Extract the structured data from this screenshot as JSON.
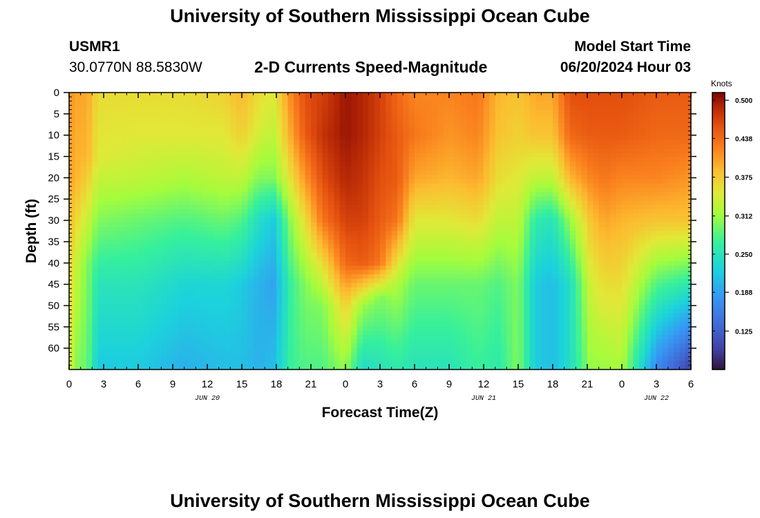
{
  "page": {
    "title": "University of Southern Mississippi Ocean Cube",
    "station": "USMR1",
    "coordinates": "30.0770N  88.5830W",
    "subtitle": "2-D Currents Speed-Magnitude",
    "model_start_label": "Model Start Time",
    "model_start_value": "06/20/2024 Hour 03",
    "footer_title": "University of Southern Mississippi Ocean Cube"
  },
  "chart_data": {
    "type": "heatmap",
    "title": "2-D Currents Speed-Magnitude",
    "xlabel": "Forecast Time(Z)",
    "ylabel": "Depth (ft)",
    "x_unit": "hours since Jun 20 00Z",
    "xlim": [
      0,
      54
    ],
    "ylim": [
      0,
      65
    ],
    "y_inverted": true,
    "x_tick_values": [
      0,
      3,
      6,
      9,
      12,
      15,
      18,
      21,
      24,
      27,
      30,
      33,
      36,
      39,
      42,
      45,
      48,
      51,
      54
    ],
    "x_tick_labels": [
      "0",
      "3",
      "6",
      "9",
      "12",
      "15",
      "18",
      "21",
      "0",
      "3",
      "6",
      "9",
      "12",
      "15",
      "18",
      "21",
      "0",
      "3",
      "6"
    ],
    "date_labels": [
      {
        "text": "JUN 20",
        "hour": 12
      },
      {
        "text": "JUN 21",
        "hour": 36
      },
      {
        "text": "JUN 22",
        "hour": 51
      }
    ],
    "y_ticks": [
      0,
      5,
      10,
      15,
      20,
      25,
      30,
      35,
      40,
      45,
      50,
      55,
      60
    ],
    "colorbar": {
      "label": "Knots",
      "min": 0.0625,
      "max": 0.5125,
      "ticks": [
        0.5,
        0.438,
        0.375,
        0.312,
        0.25,
        0.188,
        0.125
      ],
      "tick_labels": [
        "0.500",
        "0.438",
        "0.375",
        "0.312",
        "0.250",
        "0.188",
        "0.125"
      ]
    },
    "profiles": [
      {
        "hour": 0,
        "depths": [
          0,
          20,
          40,
          64
        ],
        "values": [
          0.41,
          0.4,
          0.37,
          0.35
        ]
      },
      {
        "hour": 0.7,
        "depths": [
          0,
          20,
          40,
          64
        ],
        "values": [
          0.4,
          0.39,
          0.33,
          0.3
        ]
      },
      {
        "hour": 1.6,
        "depths": [
          0,
          15,
          40,
          64
        ],
        "values": [
          0.4,
          0.39,
          0.3,
          0.29
        ]
      },
      {
        "hour": 2.5,
        "depths": [
          0,
          15,
          30,
          45,
          64
        ],
        "values": [
          0.36,
          0.35,
          0.3,
          0.25,
          0.22
        ]
      },
      {
        "hour": 6,
        "depths": [
          0,
          10,
          20,
          30,
          45,
          64
        ],
        "values": [
          0.36,
          0.35,
          0.33,
          0.29,
          0.25,
          0.22
        ]
      },
      {
        "hour": 10,
        "depths": [
          0,
          10,
          20,
          30,
          45,
          64
        ],
        "values": [
          0.36,
          0.35,
          0.32,
          0.28,
          0.23,
          0.2
        ]
      },
      {
        "hour": 13.5,
        "depths": [
          0,
          10,
          20,
          30,
          45,
          64
        ],
        "values": [
          0.37,
          0.35,
          0.33,
          0.29,
          0.23,
          0.21
        ]
      },
      {
        "hour": 15,
        "depths": [
          0,
          10,
          20,
          30,
          45,
          64
        ],
        "values": [
          0.39,
          0.37,
          0.33,
          0.28,
          0.22,
          0.21
        ]
      },
      {
        "hour": 16.5,
        "depths": [
          0,
          10,
          20,
          30,
          45,
          64
        ],
        "values": [
          0.36,
          0.34,
          0.3,
          0.24,
          0.2,
          0.2
        ]
      },
      {
        "hour": 17.8,
        "depths": [
          0,
          10,
          20,
          30,
          45,
          64
        ],
        "values": [
          0.35,
          0.33,
          0.3,
          0.22,
          0.19,
          0.21
        ]
      },
      {
        "hour": 19.3,
        "depths": [
          0,
          10,
          20,
          30,
          45,
          64
        ],
        "values": [
          0.42,
          0.4,
          0.36,
          0.31,
          0.27,
          0.27
        ]
      },
      {
        "hour": 20.5,
        "depths": [
          0,
          10,
          20,
          30,
          45,
          64
        ],
        "values": [
          0.46,
          0.45,
          0.41,
          0.36,
          0.3,
          0.28
        ]
      },
      {
        "hour": 22,
        "depths": [
          0,
          10,
          20,
          30,
          40,
          50,
          64
        ],
        "values": [
          0.47,
          0.48,
          0.46,
          0.43,
          0.36,
          0.3,
          0.28
        ]
      },
      {
        "hour": 24,
        "depths": [
          0,
          10,
          20,
          30,
          40,
          50,
          64
        ],
        "values": [
          0.5,
          0.5,
          0.49,
          0.47,
          0.44,
          0.37,
          0.31
        ]
      },
      {
        "hour": 25.5,
        "depths": [
          0,
          10,
          20,
          30,
          40,
          50,
          64
        ],
        "values": [
          0.49,
          0.49,
          0.48,
          0.47,
          0.45,
          0.31,
          0.24
        ]
      },
      {
        "hour": 27,
        "depths": [
          0,
          10,
          20,
          30,
          40,
          48,
          64
        ],
        "values": [
          0.47,
          0.47,
          0.46,
          0.45,
          0.43,
          0.3,
          0.25
        ]
      },
      {
        "hour": 28.5,
        "depths": [
          0,
          10,
          20,
          30,
          45,
          64
        ],
        "values": [
          0.44,
          0.45,
          0.45,
          0.43,
          0.32,
          0.26
        ]
      },
      {
        "hour": 30,
        "depths": [
          0,
          10,
          20,
          30,
          45,
          64
        ],
        "values": [
          0.42,
          0.43,
          0.4,
          0.35,
          0.29,
          0.25
        ]
      },
      {
        "hour": 33,
        "depths": [
          0,
          10,
          20,
          30,
          45,
          64
        ],
        "values": [
          0.42,
          0.41,
          0.39,
          0.35,
          0.29,
          0.25
        ]
      },
      {
        "hour": 35.5,
        "depths": [
          0,
          10,
          20,
          30,
          45,
          64
        ],
        "values": [
          0.43,
          0.42,
          0.4,
          0.36,
          0.29,
          0.27
        ]
      },
      {
        "hour": 37.3,
        "depths": [
          0,
          10,
          20,
          30,
          45,
          64
        ],
        "values": [
          0.39,
          0.38,
          0.36,
          0.33,
          0.28,
          0.26
        ]
      },
      {
        "hour": 39,
        "depths": [
          0,
          10,
          20,
          30,
          45,
          64
        ],
        "values": [
          0.38,
          0.37,
          0.35,
          0.33,
          0.3,
          0.3
        ]
      },
      {
        "hour": 40.5,
        "depths": [
          0,
          10,
          20,
          30,
          45,
          64
        ],
        "values": [
          0.4,
          0.38,
          0.33,
          0.26,
          0.22,
          0.22
        ]
      },
      {
        "hour": 42,
        "depths": [
          0,
          10,
          20,
          30,
          45,
          64
        ],
        "values": [
          0.4,
          0.38,
          0.33,
          0.25,
          0.21,
          0.21
        ]
      },
      {
        "hour": 43.5,
        "depths": [
          0,
          10,
          20,
          30,
          45,
          64
        ],
        "values": [
          0.46,
          0.44,
          0.39,
          0.31,
          0.24,
          0.24
        ]
      },
      {
        "hour": 45.3,
        "depths": [
          0,
          10,
          20,
          30,
          45,
          64
        ],
        "values": [
          0.46,
          0.45,
          0.42,
          0.38,
          0.34,
          0.31
        ]
      },
      {
        "hour": 46.5,
        "depths": [
          0,
          10,
          20,
          30,
          45,
          64
        ],
        "values": [
          0.46,
          0.45,
          0.43,
          0.4,
          0.36,
          0.31
        ]
      },
      {
        "hour": 48,
        "depths": [
          0,
          10,
          20,
          30,
          45,
          64
        ],
        "values": [
          0.46,
          0.45,
          0.42,
          0.39,
          0.36,
          0.32
        ]
      },
      {
        "hour": 51,
        "depths": [
          0,
          10,
          20,
          30,
          45,
          64
        ],
        "values": [
          0.45,
          0.44,
          0.42,
          0.38,
          0.28,
          0.17
        ]
      },
      {
        "hour": 54,
        "depths": [
          0,
          10,
          20,
          30,
          40,
          50,
          64
        ],
        "values": [
          0.45,
          0.44,
          0.41,
          0.38,
          0.3,
          0.21,
          0.1
        ]
      }
    ]
  }
}
